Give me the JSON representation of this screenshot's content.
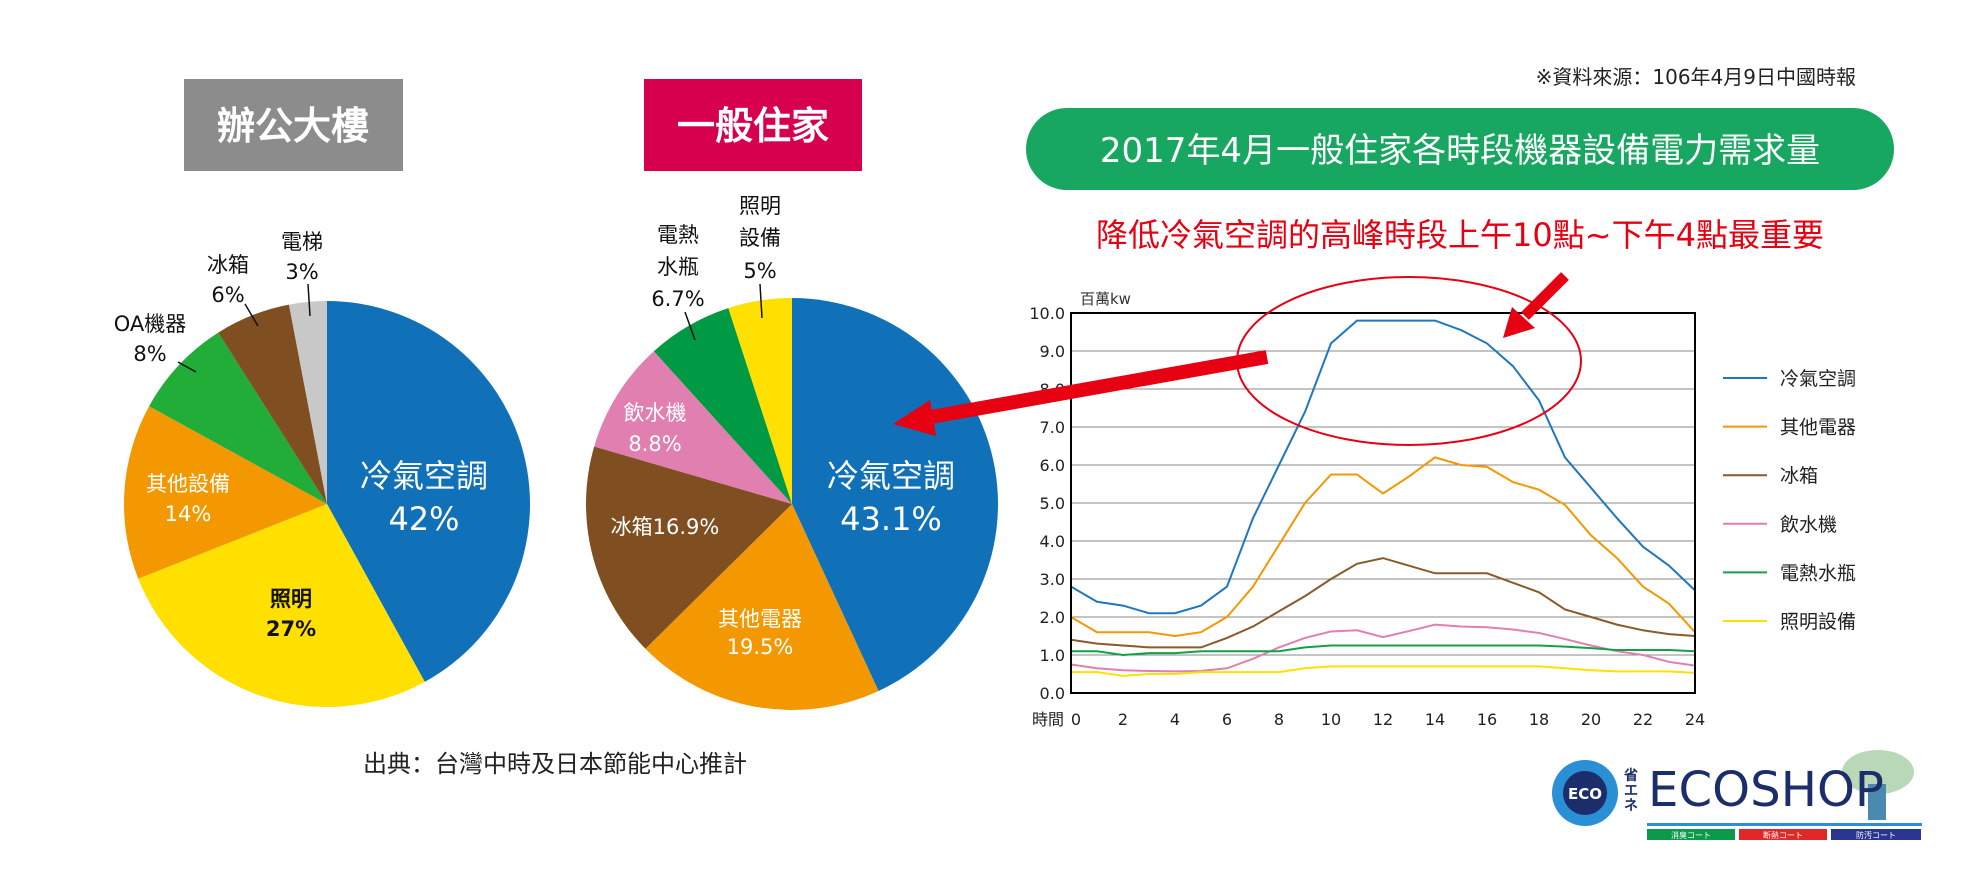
{
  "source_note": "※資料來源：106年4月9日中國時報",
  "footer_source": "出典：台灣中時及日本節能中心推計",
  "chart_data": [
    {
      "type": "pie",
      "title": "辦公大樓",
      "title_bg": "#8c8c8c",
      "slices": [
        {
          "label": "冷氣空調",
          "value": 42,
          "value_label": "42%",
          "color": "#1070b8"
        },
        {
          "label": "照明",
          "value": 27,
          "value_label": "27%",
          "color": "#ffe000"
        },
        {
          "label": "其他設備",
          "value": 14,
          "value_label": "14%",
          "color": "#f39800"
        },
        {
          "label": "OA機器",
          "value": 8,
          "value_label": "8%",
          "color": "#22ac38"
        },
        {
          "label": "冰箱",
          "value": 6,
          "value_label": "6%",
          "color": "#7f4f21"
        },
        {
          "label": "電梯",
          "value": 3,
          "value_label": "3%",
          "color": "#c8c8c8"
        }
      ]
    },
    {
      "type": "pie",
      "title": "一般住家",
      "title_bg": "#d7004f",
      "slices": [
        {
          "label": "冷氣空調",
          "value": 43.1,
          "value_label": "43.1%",
          "color": "#1070b8"
        },
        {
          "label": "其他電器",
          "value": 19.5,
          "value_label": "19.5%",
          "color": "#f39800"
        },
        {
          "label": "冰箱",
          "value": 16.9,
          "value_label": "16.9%",
          "color": "#7f4f21"
        },
        {
          "label": "飲水機",
          "value": 8.8,
          "value_label": "8.8%",
          "color": "#e17fb0"
        },
        {
          "label": "電熱水瓶",
          "label_lines": [
            "電熱",
            "水瓶"
          ],
          "value": 6.7,
          "value_label": "6.7%",
          "color": "#009a44"
        },
        {
          "label": "照明設備",
          "label_lines": [
            "照明",
            "設備"
          ],
          "value": 5,
          "value_label": "5%",
          "color": "#ffe000"
        }
      ]
    },
    {
      "type": "line",
      "title": "2017年4月一般住家各時段機器設備電力需求量",
      "title_bg": "#17a760",
      "subtitle": "降低冷氣空調的高峰時段上午10點~下午4點最重要",
      "subtitle_color": "#e60012",
      "ylabel": "百萬kw",
      "xlabel": "時間",
      "ylim": [
        0,
        10
      ],
      "xlim": [
        0,
        24
      ],
      "yticks": [
        "0.0",
        "1.0",
        "2.0",
        "3.0",
        "4.0",
        "5.0",
        "6.0",
        "7.0",
        "8.0",
        "9.0",
        "10.0"
      ],
      "xticks": [
        "0",
        "2",
        "4",
        "6",
        "8",
        "10",
        "12",
        "14",
        "16",
        "18",
        "20",
        "22",
        "24"
      ],
      "grid": true,
      "legend": "right",
      "x": [
        0,
        1,
        2,
        3,
        4,
        5,
        6,
        7,
        8,
        9,
        10,
        11,
        12,
        13,
        14,
        15,
        16,
        17,
        18,
        19,
        20,
        21,
        22,
        23,
        24
      ],
      "series": [
        {
          "name": "冷氣空調",
          "color": "#1f77c0",
          "values": [
            2.8,
            2.4,
            2.3,
            2.1,
            2.1,
            2.3,
            2.8,
            4.6,
            6.0,
            7.4,
            9.2,
            9.8,
            9.8,
            9.8,
            9.8,
            9.55,
            9.2,
            8.6,
            7.7,
            6.2,
            5.4,
            4.6,
            3.85,
            3.35,
            2.7
          ]
        },
        {
          "name": "其他電器",
          "color": "#f39800",
          "values": [
            2.0,
            1.6,
            1.6,
            1.6,
            1.5,
            1.6,
            2.0,
            2.8,
            3.9,
            5.0,
            5.75,
            5.75,
            5.25,
            5.7,
            6.2,
            6.0,
            5.95,
            5.55,
            5.35,
            4.95,
            4.15,
            3.55,
            2.8,
            2.35,
            1.6
          ]
        },
        {
          "name": "冰箱",
          "color": "#8b5a2b",
          "values": [
            1.4,
            1.3,
            1.25,
            1.2,
            1.2,
            1.2,
            1.45,
            1.75,
            2.15,
            2.55,
            3.0,
            3.4,
            3.55,
            3.35,
            3.15,
            3.15,
            3.15,
            2.9,
            2.65,
            2.2,
            2.0,
            1.8,
            1.65,
            1.55,
            1.5
          ]
        },
        {
          "name": "飲水機",
          "color": "#e17fb0",
          "values": [
            0.75,
            0.65,
            0.6,
            0.58,
            0.57,
            0.58,
            0.65,
            0.9,
            1.2,
            1.45,
            1.62,
            1.65,
            1.47,
            1.63,
            1.8,
            1.75,
            1.73,
            1.67,
            1.58,
            1.42,
            1.25,
            1.1,
            1.0,
            0.82,
            0.72
          ]
        },
        {
          "name": "電熱水瓶",
          "color": "#13a04a",
          "values": [
            1.1,
            1.1,
            1.0,
            1.05,
            1.05,
            1.1,
            1.1,
            1.1,
            1.1,
            1.2,
            1.25,
            1.25,
            1.25,
            1.25,
            1.25,
            1.25,
            1.25,
            1.25,
            1.25,
            1.22,
            1.18,
            1.13,
            1.13,
            1.13,
            1.1
          ]
        },
        {
          "name": "照明設備",
          "color": "#ffe000",
          "values": [
            0.55,
            0.55,
            0.45,
            0.5,
            0.5,
            0.55,
            0.55,
            0.55,
            0.55,
            0.65,
            0.7,
            0.7,
            0.7,
            0.7,
            0.7,
            0.7,
            0.7,
            0.7,
            0.7,
            0.65,
            0.6,
            0.57,
            0.57,
            0.57,
            0.53
          ]
        }
      ]
    }
  ],
  "logo": {
    "text": "ECOSHOP",
    "prefix": "省エネ",
    "badge": "ECO",
    "coats": [
      "消臭コート",
      "断熱コート",
      "防汚コート"
    ],
    "coat_colors": [
      "#0a9a4a",
      "#e02828",
      "#2a3590"
    ]
  }
}
